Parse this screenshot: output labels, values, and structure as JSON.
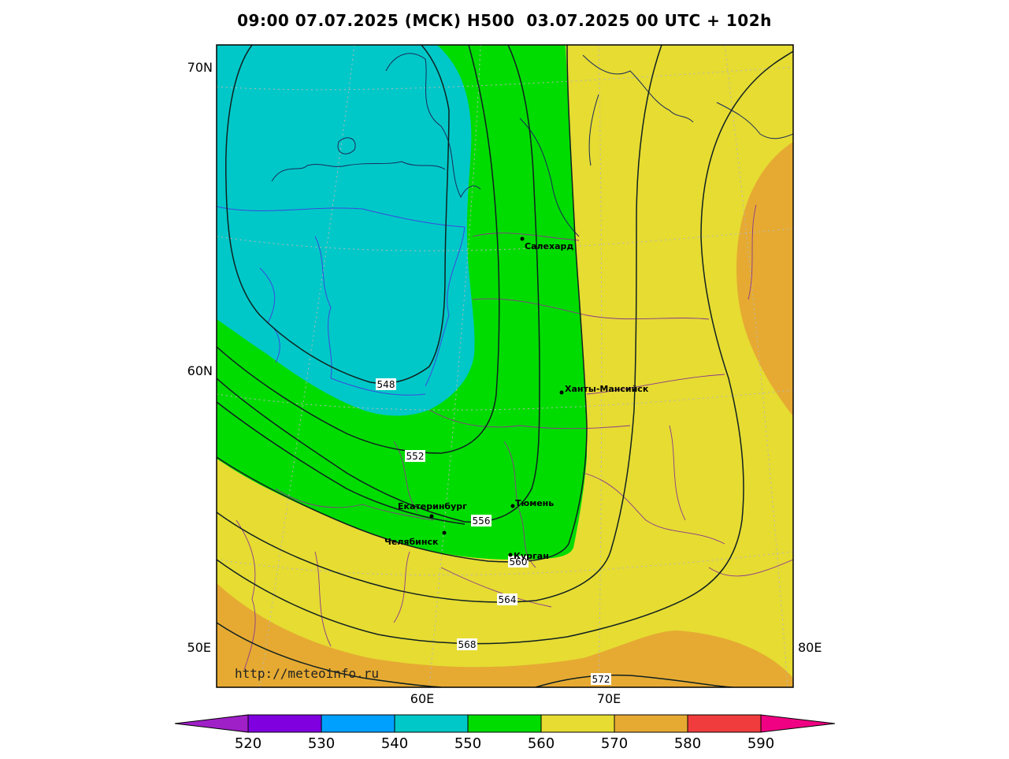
{
  "title": "09:00 07.07.2025 (МСК) H500  03.07.2025 00 UTC + 102h",
  "map": {
    "lat_labels": [
      "70N",
      "60N",
      "50E"
    ],
    "lon_labels": [
      "60E",
      "70E",
      "80E"
    ],
    "cities": [
      {
        "name": "Салехард"
      },
      {
        "name": "Ханты-Мансийск"
      },
      {
        "name": "Екатеринбург"
      },
      {
        "name": "Тюмень"
      },
      {
        "name": "Челябинск"
      },
      {
        "name": "Курган"
      }
    ],
    "contour_labels": [
      "548",
      "552",
      "556",
      "560",
      "564",
      "568",
      "572"
    ],
    "url": "http://meteoinfo.ru"
  },
  "colorbar": {
    "labels": [
      "520",
      "530",
      "540",
      "550",
      "560",
      "570",
      "580",
      "590"
    ],
    "colors": [
      "#a020c8",
      "#8000e0",
      "#00a0ff",
      "#00c8c8",
      "#00dc00",
      "#e6dc32",
      "#e6aa32",
      "#f03c3c",
      "#f00082"
    ]
  },
  "fill_colors": {
    "cyan": "#00c8c8",
    "green": "#00dc00",
    "yellow": "#e6dc32",
    "orange": "#e6aa32"
  }
}
